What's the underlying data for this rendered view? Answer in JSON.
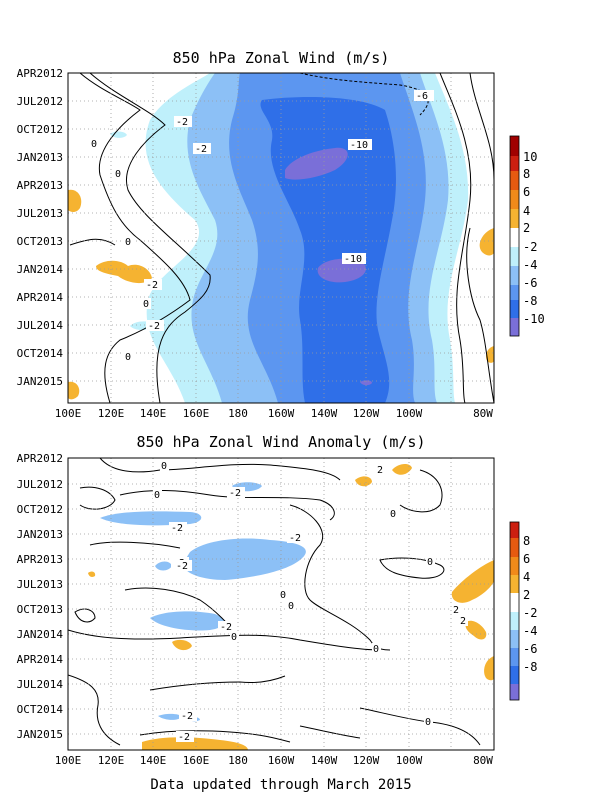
{
  "footer": "Data updated through March 2015",
  "colors": {
    "neg10": "#7a6fd8",
    "neg8": "#2f6fe8",
    "neg6": "#5c96f0",
    "neg4": "#8cc0f6",
    "neg2": "#bff0fb",
    "pos2": "#f5b331",
    "pos4": "#f08a1a",
    "pos6": "#e65a10",
    "pos8": "#cc1f10",
    "pos10": "#a00000"
  },
  "chart_data": [
    {
      "type": "heatmap",
      "title": "850 hPa Zonal Wind (m/s)",
      "x_ticks": [
        "100E",
        "120E",
        "140E",
        "160E",
        "180",
        "160W",
        "140W",
        "120W",
        "100W",
        "80W"
      ],
      "y_ticks": [
        "APR2012",
        "JUL2012",
        "OCT2012",
        "JAN2013",
        "APR2013",
        "JUL2013",
        "OCT2013",
        "JAN2014",
        "APR2014",
        "JUL2014",
        "OCT2014",
        "JAN2015"
      ],
      "colorbar_ticks": [
        "10",
        "8",
        "6",
        "4",
        "2",
        "-2",
        "-4",
        "-6",
        "-8",
        "-10"
      ],
      "contour_labels": [
        "-6",
        "-2",
        "-2",
        "0",
        "-10",
        "0",
        "0",
        "-10",
        "-2",
        "0",
        "-2",
        "0"
      ],
      "grid": true
    },
    {
      "type": "heatmap",
      "title": "850 hPa Zonal Wind Anomaly (m/s)",
      "x_ticks": [
        "100E",
        "120E",
        "140E",
        "160E",
        "180",
        "160W",
        "140W",
        "120W",
        "100W",
        "80W"
      ],
      "y_ticks": [
        "APR2012",
        "JUL2012",
        "OCT2012",
        "JAN2013",
        "APR2013",
        "JUL2013",
        "OCT2013",
        "JAN2014",
        "APR2014",
        "JUL2014",
        "OCT2014",
        "JAN2015"
      ],
      "colorbar_ticks": [
        "8",
        "6",
        "4",
        "2",
        "-2",
        "-4",
        "-6",
        "-8"
      ],
      "contour_labels": [
        "0",
        "2",
        "-2",
        "0",
        "0",
        "-2",
        "-2",
        "-2",
        "0",
        "-2",
        "2",
        "0",
        "0",
        "2",
        "0",
        "0",
        "-2",
        "-2",
        "0",
        "-2"
      ],
      "grid": true
    }
  ]
}
